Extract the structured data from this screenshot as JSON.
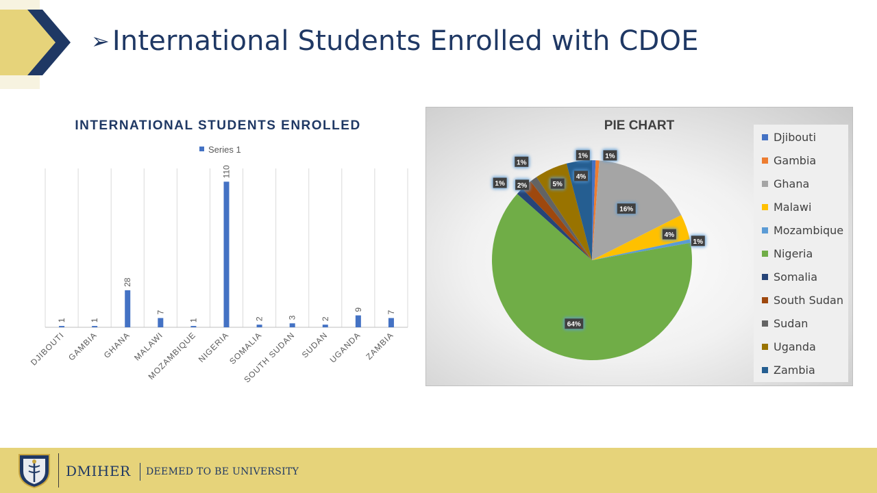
{
  "slide": {
    "title_bullet": "➢",
    "title": "International Students Enrolled with CDOE"
  },
  "footer": {
    "brand": "DMIHER",
    "subtitle": "DEEMED TO BE UNIVERSITY"
  },
  "chart_data": [
    {
      "type": "bar",
      "title": "INTERNATIONAL STUDENTS ENROLLED",
      "legend": "Series 1",
      "categories": [
        "DJIBOUTI",
        "GAMBIA",
        "GHANA",
        "MALAWI",
        "MOZAMBIQUE",
        "NIGERIA",
        "SOMALIA",
        "SOUTH SUDAN",
        "SUDAN",
        "UGANDA",
        "ZAMBIA"
      ],
      "series": [
        {
          "name": "Series 1",
          "values": [
            1,
            1,
            28,
            7,
            1,
            110,
            2,
            3,
            2,
            9,
            7
          ]
        }
      ],
      "ylim": [
        0,
        120
      ],
      "color": "#4472c4"
    },
    {
      "type": "pie",
      "title": "PIE CHART",
      "categories": [
        "Djibouti",
        "Gambia",
        "Ghana",
        "Malawi",
        "Mozambique",
        "Nigeria",
        "Somalia",
        "South Sudan",
        "Sudan",
        "Uganda",
        "Zambia"
      ],
      "values": [
        1,
        1,
        28,
        7,
        1,
        110,
        2,
        3,
        2,
        9,
        7
      ],
      "data_labels": [
        "1%",
        "1%",
        "16%",
        "4%",
        "1%",
        "64%",
        "1%",
        "2%",
        "1%",
        "5%",
        "4%"
      ],
      "colors": [
        "#4472c4",
        "#ed7d31",
        "#a5a5a5",
        "#ffc000",
        "#5b9bd5",
        "#70ad47",
        "#264478",
        "#9e480e",
        "#636363",
        "#997300",
        "#255e91"
      ]
    }
  ]
}
